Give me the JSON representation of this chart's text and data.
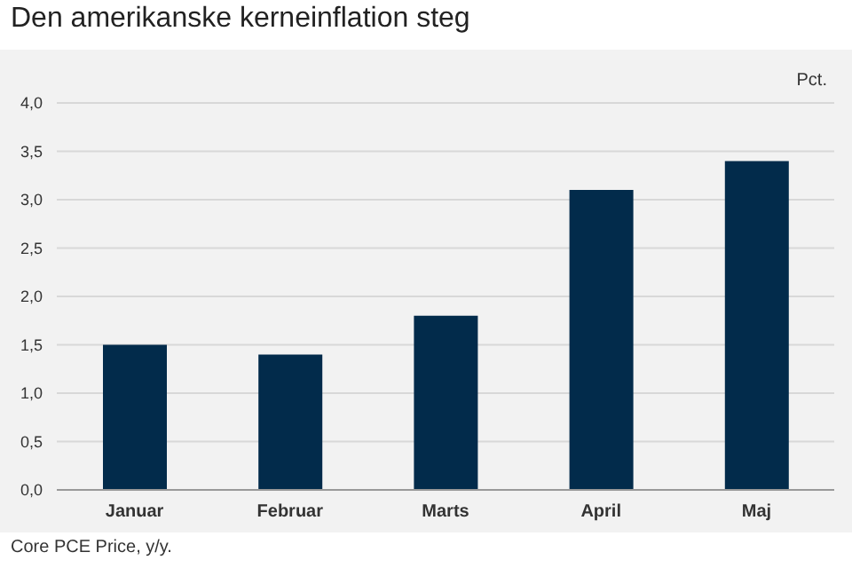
{
  "chart_data": {
    "type": "bar",
    "title": "Den amerikanske kerneinflation steg",
    "ylabel": "Pct.",
    "annotations": [
      "Core PCE Price, y/y."
    ],
    "categories": [
      "Januar",
      "Februar",
      "Marts",
      "April",
      "Maj"
    ],
    "values": [
      1.5,
      1.4,
      1.8,
      3.1,
      3.4
    ],
    "color": "#022b4b",
    "ylim": [
      0,
      4
    ],
    "yticks": [
      {
        "value": 0,
        "label": "0,0"
      },
      {
        "value": 0.5,
        "label": "0,5"
      },
      {
        "value": 1,
        "label": "1,0"
      },
      {
        "value": 1.5,
        "label": "1,5"
      },
      {
        "value": 2,
        "label": "2,0"
      },
      {
        "value": 2.5,
        "label": "2,5"
      },
      {
        "value": 3,
        "label": "3,0"
      },
      {
        "value": 3.5,
        "label": "3,5"
      },
      {
        "value": 4,
        "label": "4,0"
      }
    ],
    "grid": "y",
    "legend": false
  }
}
